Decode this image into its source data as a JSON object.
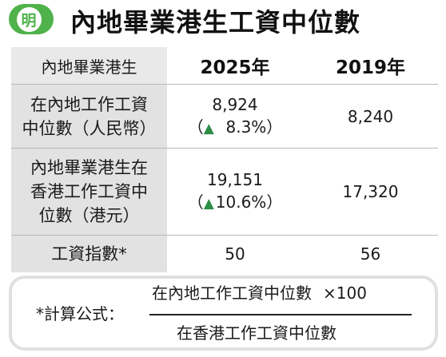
{
  "header": {
    "logo_char": "明",
    "title": "內地畢業港生工資中位數"
  },
  "table": {
    "head": {
      "label": "內地畢業港生",
      "col1": "2025年",
      "col2": "2019年"
    },
    "rows": [
      {
        "label_lines": [
          "在內地工作工資",
          "中位數（人民幣）"
        ],
        "v1": "8,924",
        "v1_change": "8.3%",
        "v2": "8,240"
      },
      {
        "label_lines": [
          "內地畢業港生在",
          "香港工作工資中",
          "位數（港元）"
        ],
        "v1": "19,151",
        "v1_change": "10.6%",
        "v2": "17,320"
      },
      {
        "label_lines": [
          "工資指數*"
        ],
        "v1": "50",
        "v2": "56"
      }
    ],
    "up_glyph": "▲",
    "open_paren": "（",
    "close_paren": "）"
  },
  "formula": {
    "label": "*計算公式：",
    "numerator": "在內地工作工資中位數",
    "multiplier": "×100",
    "denominator": "在香港工作工資中位數"
  },
  "colors": {
    "logo_green": "#4fb24a",
    "label_bg": "#e2e2e2",
    "up_arrow": "#2e8d46"
  }
}
